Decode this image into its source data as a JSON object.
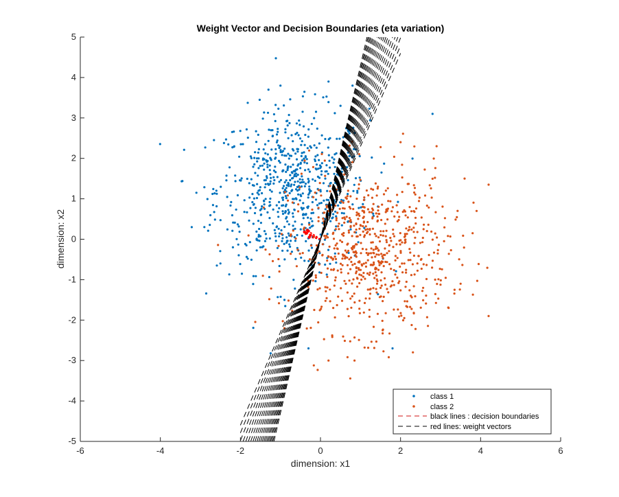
{
  "chart_data": {
    "type": "scatter",
    "title": "Weight Vector and Decision Boundaries (eta variation)",
    "xlabel": "dimension: x1",
    "ylabel": "dimension: x2",
    "xlim": [
      -6,
      6
    ],
    "ylim": [
      -5,
      5
    ],
    "xticks": [
      "-6",
      "-4",
      "-2",
      "0",
      "2",
      "4",
      "6"
    ],
    "yticks": [
      "5",
      "4",
      "3",
      "2",
      "1",
      "0",
      "-1",
      "-2",
      "-3",
      "-4",
      "-5"
    ],
    "grid": false,
    "legend_position": "bottom-right",
    "legend": [
      {
        "label": "class 1",
        "style": "dot",
        "color": "#0072BD"
      },
      {
        "label": "class 2",
        "style": "dot",
        "color": "#D95319"
      },
      {
        "label": "black lines : decision boundaries",
        "style": "dashed",
        "color": "#D01010"
      },
      {
        "label": "red lines: weight vectors",
        "style": "dashed",
        "color": "#000000"
      }
    ],
    "series": [
      {
        "name": "class 1",
        "color": "#0072BD",
        "center": [
          -0.7,
          1.2
        ],
        "spread": [
          0.95,
          1.0
        ],
        "count": 700,
        "points": [
          [
            -3.1,
            1.15
          ],
          [
            -2.9,
            0.3
          ],
          [
            -1.0,
            3.8
          ],
          [
            0.2,
            3.9
          ],
          [
            0.8,
            3.8
          ],
          [
            -0.9,
            -1.5
          ],
          [
            -0.3,
            -2.7
          ],
          [
            1.8,
            -2.7
          ],
          [
            2.8,
            3.1
          ],
          [
            -2.5,
            -0.6
          ],
          [
            -2.6,
            1.2
          ],
          [
            0.5,
            3.3
          ]
        ]
      },
      {
        "name": "class 2",
        "color": "#D95319",
        "center": [
          1.2,
          -0.3
        ],
        "spread": [
          1.0,
          1.0
        ],
        "count": 700,
        "points": [
          [
            4.2,
            1.35
          ],
          [
            4.2,
            -1.9
          ],
          [
            3.8,
            0.15
          ],
          [
            3.9,
            0.7
          ],
          [
            3.6,
            1.5
          ],
          [
            2.9,
            2.3
          ],
          [
            0.2,
            -3.0
          ],
          [
            0.85,
            -3.0
          ],
          [
            3.2,
            -1.7
          ],
          [
            -0.9,
            -2.2
          ],
          [
            3.5,
            -1.1
          ],
          [
            2.0,
            2.4
          ]
        ]
      }
    ],
    "decision_boundaries": {
      "color": "#000000",
      "style": "dashed",
      "count": 22,
      "slope_range": [
        2.3,
        4.3
      ],
      "extent_x": [
        -2.0,
        2.0
      ]
    },
    "weight_vectors": {
      "color": "#FF0000",
      "points": [
        [
          -0.3,
          0.2
        ],
        [
          -0.35,
          0.15
        ],
        [
          -0.25,
          0.1
        ],
        [
          -0.4,
          0.18
        ],
        [
          -0.28,
          0.05
        ],
        [
          -0.33,
          0.22
        ]
      ]
    }
  }
}
